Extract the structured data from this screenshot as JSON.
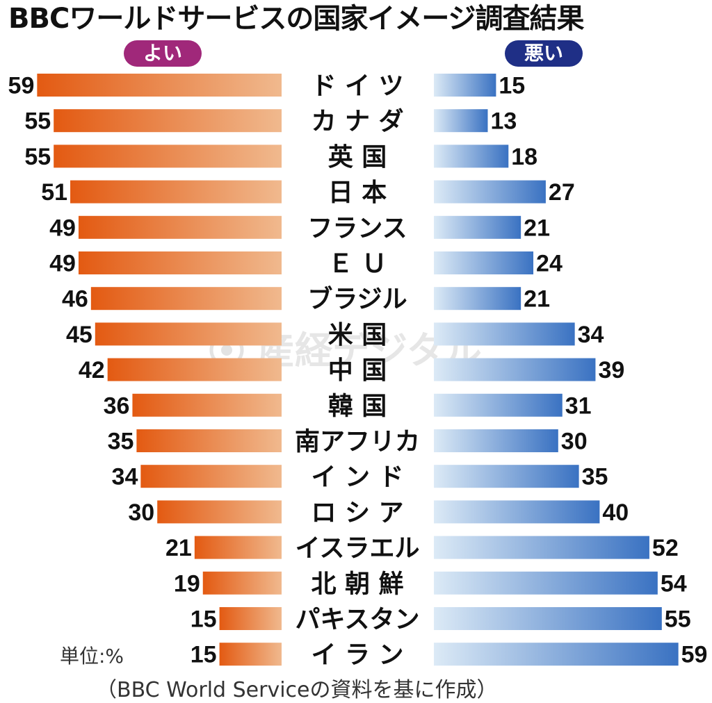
{
  "title": "BBCワールドサービスの国家イメージ調査結果",
  "legend": {
    "good": "よい",
    "bad": "悪い"
  },
  "unit": "単位:%",
  "source": "（BBC World Serviceの資料を基に作成）",
  "watermark": "産経デジタル",
  "colors": {
    "good": "#e8601c",
    "bad": "#3f78c4",
    "good_pill": "#a0287a",
    "bad_pill": "#1f2f86"
  },
  "chart_data": {
    "type": "bar",
    "orientation": "horizontal-butterfly",
    "categories": [
      "ド イ ツ",
      "カ ナ ダ",
      "英 国",
      "日 本",
      "フランス",
      "Ｅ Ｕ",
      "ブラジル",
      "米 国",
      "中 国",
      "韓 国",
      "南アフリカ",
      "イ ン ド",
      "ロ シ ア",
      "イスラエル",
      "北 朝 鮮",
      "パキスタン",
      "イ ラ ン"
    ],
    "series": [
      {
        "name": "よい",
        "values": [
          59,
          55,
          55,
          51,
          49,
          49,
          46,
          45,
          42,
          36,
          35,
          34,
          30,
          21,
          19,
          15,
          15
        ]
      },
      {
        "name": "悪い",
        "values": [
          15,
          13,
          18,
          27,
          21,
          24,
          21,
          34,
          39,
          31,
          30,
          35,
          40,
          52,
          54,
          55,
          59
        ]
      }
    ],
    "xlim": [
      0,
      59
    ]
  }
}
